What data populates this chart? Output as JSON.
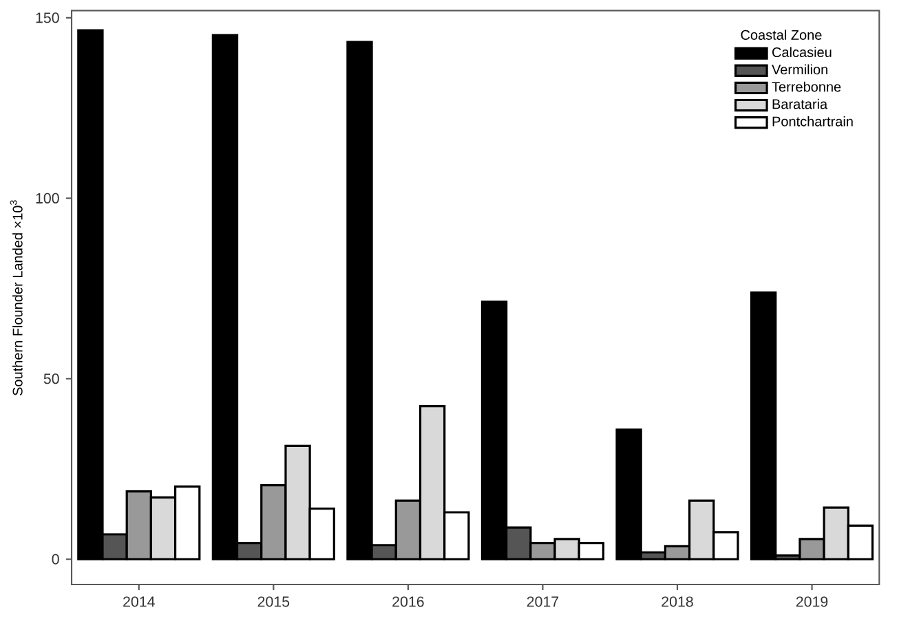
{
  "chart_data": {
    "type": "bar",
    "ylabel": "Southern Flounder Landed  ×10$^{3}$",
    "legend_title": "Coastal Zone",
    "categories": [
      "2014",
      "2015",
      "2016",
      "2017",
      "2018",
      "2019"
    ],
    "series": [
      {
        "name": "Calcasieu",
        "color": "#000000",
        "values": [
          146.5,
          145.2,
          143.3,
          71.3,
          35.9,
          73.9
        ]
      },
      {
        "name": "Vermilion",
        "color": "#555555",
        "values": [
          6.9,
          4.5,
          3.9,
          8.8,
          1.9,
          1.0
        ]
      },
      {
        "name": "Terrebonne",
        "color": "#999999",
        "values": [
          18.8,
          20.5,
          16.2,
          4.5,
          3.6,
          5.6
        ]
      },
      {
        "name": "Barataria",
        "color": "#d9d9d9",
        "values": [
          17.1,
          31.4,
          42.4,
          5.6,
          16.2,
          14.3
        ]
      },
      {
        "name": "Pontchartrain",
        "color": "#ffffff",
        "values": [
          20.1,
          14.0,
          13.0,
          4.5,
          7.5,
          9.3
        ]
      }
    ],
    "ylim": [
      -7,
      152
    ],
    "yticks": [
      0,
      50,
      100,
      150
    ],
    "grid": false,
    "legend": "top right"
  }
}
